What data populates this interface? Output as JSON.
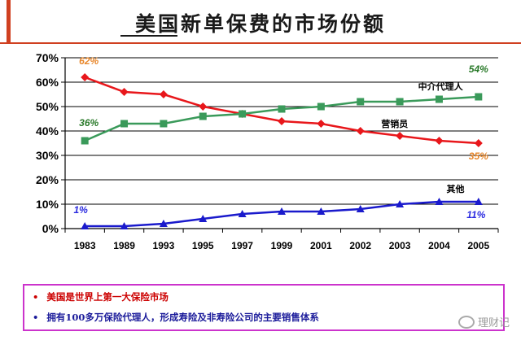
{
  "page": {
    "title": "美国新单保费的市场份额",
    "watermark": "理财记"
  },
  "notes": [
    {
      "bullet": "•",
      "text": "美国是世界上第一大保险市场"
    },
    {
      "bullet": "•",
      "text": "拥有100多万保险代理人，形成寿险及非寿险公司的主要销售体系"
    }
  ],
  "chart_data": {
    "type": "line",
    "categories": [
      "1983",
      "1989",
      "1993",
      "1995",
      "1997",
      "1999",
      "2001",
      "2002",
      "2003",
      "2004",
      "2005"
    ],
    "ylim": [
      0,
      70
    ],
    "yticks": [
      "0%",
      "10%",
      "20%",
      "30%",
      "40%",
      "50%",
      "60%",
      "70%"
    ],
    "grid": true,
    "series": [
      {
        "name": "营销员",
        "color": "#e8171b",
        "marker": "diamond",
        "values": [
          62,
          56,
          55,
          50,
          47,
          44,
          43,
          40,
          38,
          36,
          35
        ],
        "start_label": "62%",
        "end_label": "35%",
        "label_color": "#e8872b"
      },
      {
        "name": "中介代理人",
        "color": "#3a9a5a",
        "marker": "square",
        "values": [
          36,
          43,
          43,
          46,
          47,
          49,
          50,
          52,
          52,
          53,
          54
        ],
        "start_label": "36%",
        "end_label": "54%",
        "label_color": "#2a7a2a"
      },
      {
        "name": "其他",
        "color": "#1a1acc",
        "marker": "triangle",
        "values": [
          1,
          1,
          2,
          4,
          6,
          7,
          7,
          8,
          10,
          11,
          11
        ],
        "start_label": "1%",
        "end_label": "11%",
        "label_color": "#2a2ae0"
      }
    ]
  }
}
